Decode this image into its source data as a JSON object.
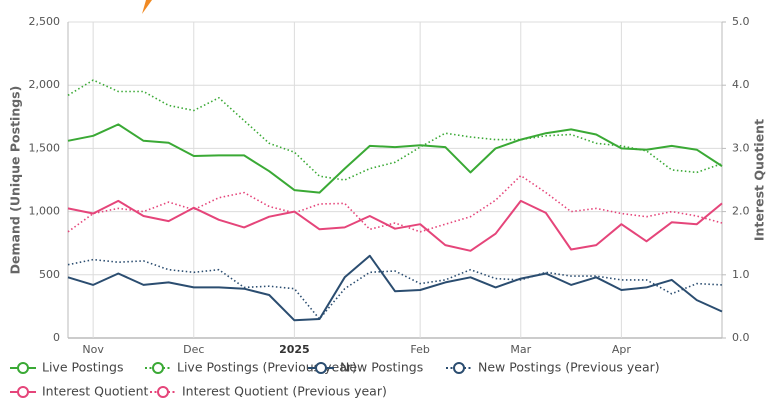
{
  "chart_data": {
    "type": "line",
    "y_label": "Demand (Unique Postings)",
    "y2_label": "Interest Quotient",
    "categories": [
      null,
      "Nov",
      null,
      null,
      null,
      "Dec",
      null,
      null,
      null,
      "2025",
      null,
      null,
      null,
      null,
      "Feb",
      null,
      null,
      null,
      "Mar",
      null,
      null,
      null,
      "Apr",
      null,
      null,
      null,
      null
    ],
    "ylim": [
      0,
      2500
    ],
    "yticks": [
      0,
      500,
      {
        "value": 1000,
        "label": "1,000"
      },
      {
        "value": 1500,
        "label": "1,500"
      },
      {
        "value": 2000,
        "label": "2,000"
      },
      {
        "value": 2500,
        "label": "2,500"
      }
    ],
    "y2lim": [
      0,
      5
    ],
    "y2ticks": [
      {
        "value": 0,
        "label": "0.0"
      },
      {
        "value": 1,
        "label": "1.0"
      },
      {
        "value": 2,
        "label": "2.0"
      },
      {
        "value": 3,
        "label": "3.0"
      },
      {
        "value": 4,
        "label": "4.0"
      },
      {
        "value": 5,
        "label": "5.0"
      }
    ],
    "grid": true,
    "series": [
      {
        "name": "Live Postings",
        "color": "#3aa935",
        "line_style": "solid",
        "values": [
          1560,
          1600,
          1690,
          1560,
          1545,
          1440,
          1445,
          1445,
          1320,
          1170,
          1150,
          1340,
          1520,
          1510,
          1525,
          1510,
          1310,
          1500,
          1570,
          1620,
          1650,
          1610,
          1500,
          1490,
          1520,
          1490,
          1360
        ]
      },
      {
        "name": "Live Postings (Previous year)",
        "color": "#3aa935",
        "line_style": "dotted",
        "values": [
          1920,
          2040,
          1950,
          1950,
          1840,
          1800,
          1900,
          1720,
          1540,
          1470,
          1280,
          1250,
          1340,
          1390,
          1510,
          1620,
          1590,
          1570,
          1570,
          1600,
          1610,
          1540,
          1520,
          1480,
          1330,
          1310,
          1380
        ]
      },
      {
        "name": "New Postings",
        "color": "#2b4d70",
        "line_style": "solid",
        "values": [
          480,
          420,
          510,
          420,
          440,
          400,
          400,
          390,
          340,
          140,
          150,
          480,
          650,
          370,
          380,
          440,
          480,
          400,
          470,
          510,
          420,
          480,
          380,
          400,
          460,
          300,
          210
        ]
      },
      {
        "name": "New Postings (Previous year)",
        "color": "#2b4d70",
        "line_style": "dotted",
        "values": [
          580,
          620,
          600,
          610,
          540,
          520,
          540,
          400,
          410,
          390,
          150,
          390,
          520,
          530,
          430,
          460,
          540,
          470,
          460,
          520,
          490,
          490,
          460,
          460,
          350,
          430,
          420
        ]
      },
      {
        "name": "Interest Quotient",
        "color": "#e5457a",
        "line_style": "solid",
        "axis": "y2",
        "values": [
          2.05,
          1.97,
          2.17,
          1.93,
          1.85,
          2.06,
          1.87,
          1.75,
          1.92,
          2.0,
          1.72,
          1.75,
          1.93,
          1.73,
          1.8,
          1.47,
          1.38,
          1.65,
          2.17,
          1.98,
          1.4,
          1.47,
          1.8,
          1.53,
          1.83,
          1.8,
          2.13
        ]
      },
      {
        "name": "Interest Quotient (Previous year)",
        "color": "#e5457a",
        "line_style": "dotted",
        "axis": "y2",
        "values": [
          1.68,
          1.97,
          2.05,
          2.0,
          2.15,
          2.03,
          2.22,
          2.3,
          2.08,
          1.98,
          2.12,
          2.13,
          1.72,
          1.82,
          1.68,
          1.8,
          1.92,
          2.18,
          2.57,
          2.3,
          2.0,
          2.05,
          1.97,
          1.92,
          2.0,
          1.93,
          1.82
        ]
      }
    ]
  }
}
